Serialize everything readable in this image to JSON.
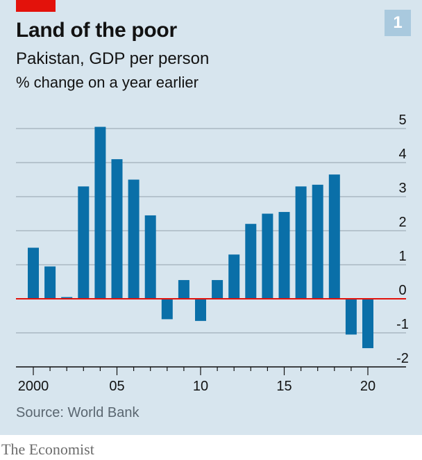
{
  "header": {
    "title": "Land of the poor",
    "subtitle": "Pakistan, GDP per person",
    "unit": "% change on a year earlier",
    "badge": "1"
  },
  "footer": {
    "source": "Source: World Bank",
    "brand": "The Economist"
  },
  "colors": {
    "bar": "#0a6fa8",
    "zero_line": "#e3120b",
    "grid": "#aab8c2",
    "background": "#d7e5ee"
  },
  "chart_data": {
    "type": "bar",
    "title": "Land of the poor",
    "subtitle": "Pakistan, GDP per person",
    "ylabel": "% change on a year earlier",
    "x": [
      2000,
      2001,
      2002,
      2003,
      2004,
      2005,
      2006,
      2007,
      2008,
      2009,
      2010,
      2011,
      2012,
      2013,
      2014,
      2015,
      2016,
      2017,
      2018,
      2019,
      2020
    ],
    "values": [
      1.5,
      0.95,
      0.05,
      3.3,
      5.05,
      4.1,
      3.5,
      2.45,
      -0.6,
      0.55,
      -0.65,
      0.55,
      1.3,
      2.2,
      2.5,
      2.55,
      3.3,
      3.35,
      3.65,
      -1.05,
      -1.45
    ],
    "ylim": [
      -2,
      5
    ],
    "yticks": [
      5,
      4,
      3,
      2,
      1,
      0,
      -1,
      -2
    ],
    "ytick_labels": [
      "5",
      "4",
      "3",
      "2",
      "1",
      "0",
      "-1",
      "-2"
    ],
    "xticks": [
      2000,
      2005,
      2010,
      2015,
      2020
    ],
    "xtick_labels": [
      "2000",
      "05",
      "10",
      "15",
      "20"
    ],
    "grid": true,
    "ytick_position": "right"
  }
}
